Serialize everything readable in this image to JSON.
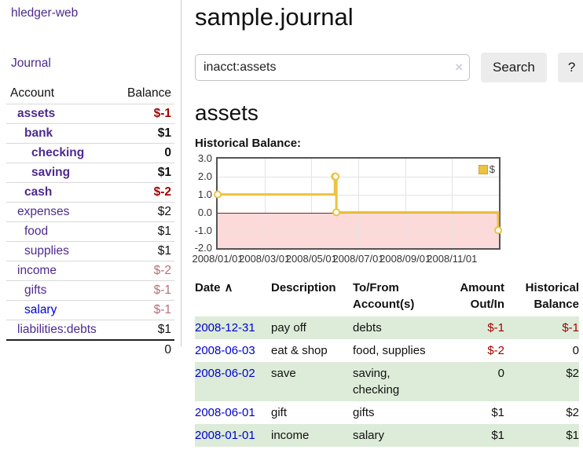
{
  "app": {
    "brand": "hledger-web",
    "nav_journal": "Journal"
  },
  "sidebar": {
    "headers": {
      "account": "Account",
      "balance": "Balance"
    },
    "accounts": [
      {
        "name": "assets",
        "balance": "$-1",
        "level": 1,
        "bold": true,
        "balance_style": "neg-strong"
      },
      {
        "name": "bank",
        "balance": "$1",
        "level": 2,
        "bold": true,
        "balance_style": "pos"
      },
      {
        "name": "checking",
        "balance": "0",
        "level": 3,
        "bold": true,
        "balance_style": "pos"
      },
      {
        "name": "saving",
        "balance": "$1",
        "level": 3,
        "bold": true,
        "balance_style": "pos"
      },
      {
        "name": "cash",
        "balance": "$-2",
        "level": 2,
        "bold": true,
        "balance_style": "neg-strong"
      },
      {
        "name": "expenses",
        "balance": "$2",
        "level": 1,
        "bold": false,
        "balance_style": "pos"
      },
      {
        "name": "food",
        "balance": "$1",
        "level": 2,
        "bold": false,
        "balance_style": "pos"
      },
      {
        "name": "supplies",
        "balance": "$1",
        "level": 2,
        "bold": false,
        "balance_style": "pos"
      },
      {
        "name": "income",
        "balance": "$-2",
        "level": 1,
        "bold": false,
        "balance_style": "neg-muted"
      },
      {
        "name": "gifts",
        "balance": "$-1",
        "level": 2,
        "bold": false,
        "balance_style": "neg-muted"
      },
      {
        "name": "salary",
        "balance": "$-1",
        "level": 2,
        "bold": false,
        "balance_style": "neg-muted",
        "link_style": "unvisited"
      },
      {
        "name": "liabilities:debts",
        "balance": "$1",
        "level": 1,
        "bold": false,
        "balance_style": "pos"
      }
    ],
    "total": "0"
  },
  "header": {
    "title": "sample.journal"
  },
  "search": {
    "query": "inacct:assets",
    "clear_icon": "×",
    "button_label": "Search",
    "help_label": "?"
  },
  "account_page": {
    "heading": "assets",
    "chart_label": "Historical Balance:"
  },
  "chart_data": {
    "type": "line",
    "step": true,
    "title": "Historical Balance",
    "series": [
      {
        "name": "$",
        "color": "#edc240",
        "points": [
          {
            "date": "2008-01-01",
            "value": 1
          },
          {
            "date": "2008-06-01",
            "value": 2
          },
          {
            "date": "2008-06-02",
            "value": 2
          },
          {
            "date": "2008-06-03",
            "value": 0
          },
          {
            "date": "2008-12-31",
            "value": -1
          }
        ]
      }
    ],
    "x_range": {
      "start": "2008-01-01",
      "end": "2009-01-01"
    },
    "xticks": [
      {
        "label": "2008/01/01",
        "month_index": 0
      },
      {
        "label": "2008/03/01",
        "month_index": 2
      },
      {
        "label": "2008/05/01",
        "month_index": 4
      },
      {
        "label": "2008/07/01",
        "month_index": 6
      },
      {
        "label": "2008/09/01",
        "month_index": 8
      },
      {
        "label": "2008/11/01",
        "month_index": 10
      }
    ],
    "yticks": [
      "3.0",
      "2.0",
      "1.0",
      "0.0",
      "-1.0",
      "-2.0"
    ],
    "ylim": [
      -2,
      3
    ],
    "legend": {
      "label": "$",
      "position": "top-right"
    },
    "grid": true,
    "zero_line_color": "#8b1e1e",
    "negative_region_color": "#fcdada"
  },
  "transactions": {
    "headers": {
      "date": "Date",
      "sort_indicator": "∧",
      "description": "Description",
      "accounts": "To/From Account(s)",
      "amount": "Amount Out/In",
      "balance": "Historical Balance"
    },
    "rows": [
      {
        "date": "2008-12-31",
        "description": "pay off",
        "accounts": "debts",
        "amount": "$-1",
        "balance": "$-1",
        "amount_negative": true,
        "balance_negative": true
      },
      {
        "date": "2008-06-03",
        "description": "eat & shop",
        "accounts": "food, supplies",
        "amount": "$-2",
        "balance": "0",
        "amount_negative": true,
        "balance_negative": false
      },
      {
        "date": "2008-06-02",
        "description": "save",
        "accounts": "saving, checking",
        "amount": "0",
        "balance": "$2",
        "amount_negative": false,
        "balance_negative": false
      },
      {
        "date": "2008-06-01",
        "description": "gift",
        "accounts": "gifts",
        "amount": "$1",
        "balance": "$2",
        "amount_negative": false,
        "balance_negative": false
      },
      {
        "date": "2008-01-01",
        "description": "income",
        "accounts": "salary",
        "amount": "$1",
        "balance": "$1",
        "amount_negative": false,
        "balance_negative": false
      }
    ]
  },
  "colors": {
    "link_purple": "#4e2a8e",
    "link_blue": "#0000dd",
    "negative_strong": "#a40000",
    "negative_muted": "#b86f7c",
    "stripe_green": "#ddecd9",
    "chart_gold": "#edc240",
    "chart_border": "#545454",
    "negative_region": "#fcdada",
    "zero_line": "#8b1e1e"
  }
}
